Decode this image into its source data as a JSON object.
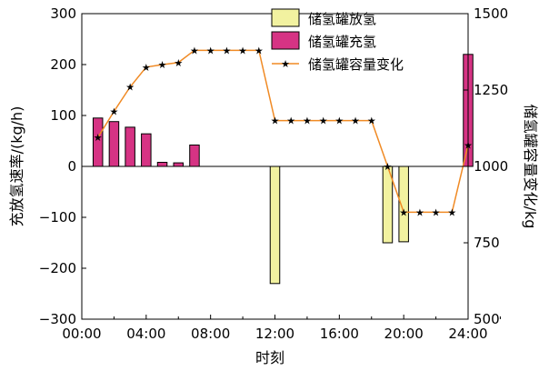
{
  "chart_data": {
    "type": "bar",
    "xlabel": "时刻",
    "ylabel": "充放氢速率/(kg/h)",
    "y2label": "储氢罐容量变化/kg",
    "xlim": [
      0,
      24
    ],
    "ylim": [
      -300,
      300
    ],
    "y2lim": [
      500,
      1500
    ],
    "xticks": [
      "00:00",
      "04:00",
      "08:00",
      "12:00",
      "16:00",
      "20:00",
      "24:00"
    ],
    "yticks": [
      "300",
      "200",
      "100",
      "0",
      "−100",
      "−200",
      "−300"
    ],
    "y2ticks": [
      "1500",
      "1250",
      "1000",
      "750",
      "500"
    ],
    "grid": false,
    "legend_position": "top-center",
    "series": [
      {
        "name": "储氢罐放氢",
        "kind": "bar",
        "color": "#f2f2a0",
        "points": [
          {
            "x": 12,
            "y": -230
          },
          {
            "x": 19,
            "y": -150
          },
          {
            "x": 20,
            "y": -148
          }
        ]
      },
      {
        "name": "储氢罐充氢",
        "kind": "bar",
        "color": "#d63384",
        "points": [
          {
            "x": 1,
            "y": 95
          },
          {
            "x": 2,
            "y": 88
          },
          {
            "x": 3,
            "y": 77
          },
          {
            "x": 4,
            "y": 64
          },
          {
            "x": 5,
            "y": 8
          },
          {
            "x": 6,
            "y": 7
          },
          {
            "x": 7,
            "y": 42
          },
          {
            "x": 24,
            "y": 220
          }
        ]
      },
      {
        "name": "储氢罐容量变化",
        "kind": "line",
        "axis": "right",
        "color": "#f08a24",
        "x": [
          1,
          2,
          3,
          4,
          5,
          6,
          7,
          8,
          9,
          10,
          11,
          12,
          13,
          14,
          15,
          16,
          17,
          18,
          19,
          20,
          21,
          22,
          23,
          24
        ],
        "y": [
          1095,
          1180,
          1260,
          1325,
          1333,
          1340,
          1380,
          1380,
          1380,
          1380,
          1380,
          1150,
          1150,
          1150,
          1150,
          1150,
          1150,
          1150,
          1000,
          850,
          850,
          850,
          850,
          1070
        ]
      }
    ]
  }
}
